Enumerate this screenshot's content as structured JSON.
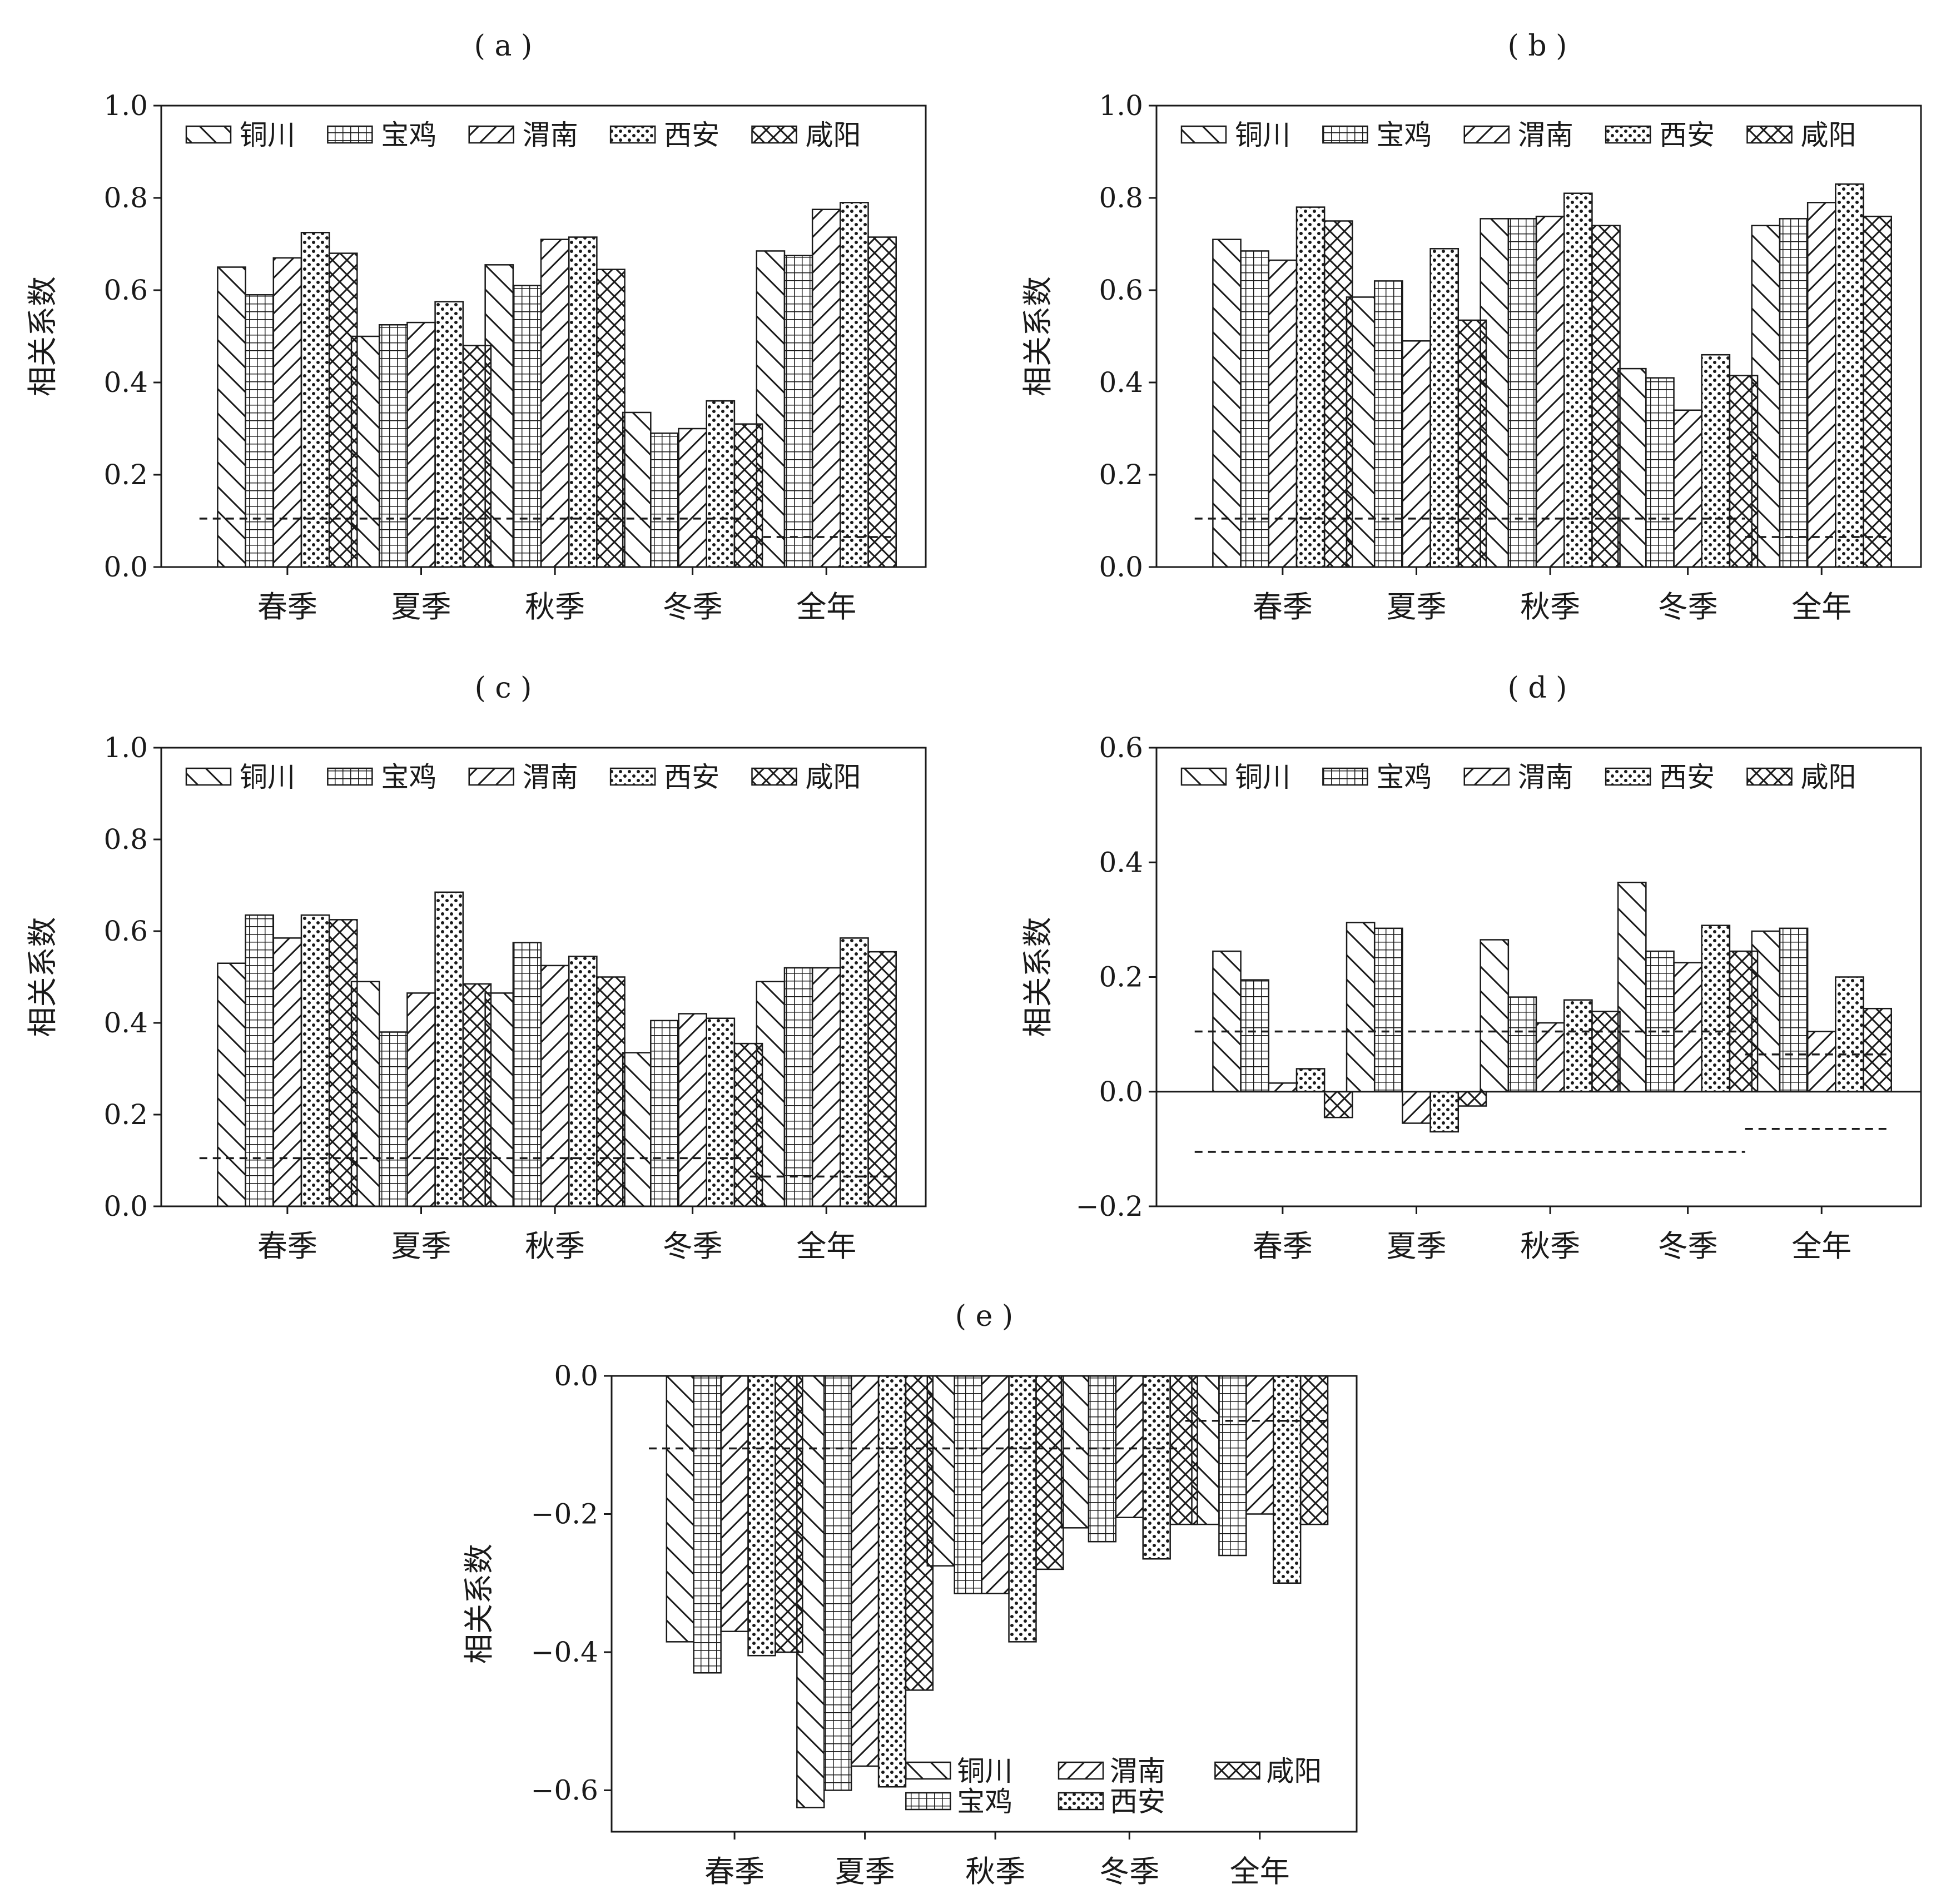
{
  "figure": {
    "y_axis_title": "相关系数",
    "patterns": {
      "铜川": "back-slash",
      "宝鸡": "grid",
      "渭南": "forward-slash",
      "西安": "dots",
      "咸阳": "cross-hatch"
    }
  },
  "chart_data": [
    {
      "type": "bar",
      "panel": "(a)",
      "categories": [
        "春季",
        "夏季",
        "秋季",
        "冬季",
        "全年"
      ],
      "series": [
        {
          "name": "铜川",
          "values": [
            0.65,
            0.5,
            0.655,
            0.335,
            0.685
          ]
        },
        {
          "name": "宝鸡",
          "values": [
            0.59,
            0.525,
            0.61,
            0.29,
            0.675
          ]
        },
        {
          "name": "渭南",
          "values": [
            0.67,
            0.53,
            0.71,
            0.3,
            0.775
          ]
        },
        {
          "name": "西安",
          "values": [
            0.725,
            0.575,
            0.715,
            0.36,
            0.79
          ]
        },
        {
          "name": "咸阳",
          "values": [
            0.68,
            0.48,
            0.645,
            0.31,
            0.715
          ]
        }
      ],
      "ylabel": "相关系数",
      "ylim": [
        0.0,
        1.0
      ],
      "yticks": [
        "0.0",
        "0.2",
        "0.4",
        "0.6",
        "0.8",
        "1.0"
      ],
      "significance": [
        {
          "value": 0.105,
          "span": "春季–冬季"
        },
        {
          "value": 0.065,
          "span": "全年"
        }
      ],
      "legend_position": "top"
    },
    {
      "type": "bar",
      "panel": "(b)",
      "categories": [
        "春季",
        "夏季",
        "秋季",
        "冬季",
        "全年"
      ],
      "series": [
        {
          "name": "铜川",
          "values": [
            0.71,
            0.585,
            0.755,
            0.43,
            0.74
          ]
        },
        {
          "name": "宝鸡",
          "values": [
            0.685,
            0.62,
            0.755,
            0.41,
            0.755
          ]
        },
        {
          "name": "渭南",
          "values": [
            0.665,
            0.49,
            0.76,
            0.34,
            0.79
          ]
        },
        {
          "name": "西安",
          "values": [
            0.78,
            0.69,
            0.81,
            0.46,
            0.83
          ]
        },
        {
          "name": "咸阳",
          "values": [
            0.75,
            0.535,
            0.74,
            0.415,
            0.76
          ]
        }
      ],
      "ylabel": "相关系数",
      "ylim": [
        0.0,
        1.0
      ],
      "yticks": [
        "0.0",
        "0.2",
        "0.4",
        "0.6",
        "0.8",
        "1.0"
      ],
      "significance": [
        {
          "value": 0.105,
          "span": "春季–冬季"
        },
        {
          "value": 0.065,
          "span": "全年"
        }
      ],
      "legend_position": "top"
    },
    {
      "type": "bar",
      "panel": "(c)",
      "categories": [
        "春季",
        "夏季",
        "秋季",
        "冬季",
        "全年"
      ],
      "series": [
        {
          "name": "铜川",
          "values": [
            0.53,
            0.49,
            0.465,
            0.335,
            0.49
          ]
        },
        {
          "name": "宝鸡",
          "values": [
            0.635,
            0.38,
            0.575,
            0.405,
            0.52
          ]
        },
        {
          "name": "渭南",
          "values": [
            0.585,
            0.465,
            0.525,
            0.42,
            0.52
          ]
        },
        {
          "name": "西安",
          "values": [
            0.635,
            0.685,
            0.545,
            0.41,
            0.585
          ]
        },
        {
          "name": "咸阳",
          "values": [
            0.625,
            0.485,
            0.5,
            0.355,
            0.555
          ]
        }
      ],
      "ylabel": "相关系数",
      "ylim": [
        0.0,
        1.0
      ],
      "yticks": [
        "0.0",
        "0.2",
        "0.4",
        "0.6",
        "0.8",
        "1.0"
      ],
      "significance": [
        {
          "value": 0.105,
          "span": "春季–冬季"
        },
        {
          "value": 0.065,
          "span": "全年"
        }
      ],
      "legend_position": "top"
    },
    {
      "type": "bar",
      "panel": "(d)",
      "categories": [
        "春季",
        "夏季",
        "秋季",
        "冬季",
        "全年"
      ],
      "series": [
        {
          "name": "铜川",
          "values": [
            0.245,
            0.295,
            0.265,
            0.365,
            0.28
          ]
        },
        {
          "name": "宝鸡",
          "values": [
            0.195,
            0.285,
            0.165,
            0.245,
            0.285
          ]
        },
        {
          "name": "渭南",
          "values": [
            0.015,
            -0.055,
            0.12,
            0.225,
            0.105
          ]
        },
        {
          "name": "西安",
          "values": [
            0.04,
            -0.07,
            0.16,
            0.29,
            0.2
          ]
        },
        {
          "name": "咸阳",
          "values": [
            -0.045,
            -0.025,
            0.14,
            0.245,
            0.145
          ]
        }
      ],
      "ylabel": "相关系数",
      "ylim": [
        -0.2,
        0.6
      ],
      "yticks": [
        "−0.2",
        "0.0",
        "0.2",
        "0.4",
        "0.6"
      ],
      "significance": [
        {
          "value": 0.105,
          "span": "春季–冬季"
        },
        {
          "value": -0.105,
          "span": "春季–冬季"
        },
        {
          "value": 0.065,
          "span": "全年"
        },
        {
          "value": -0.065,
          "span": "全年"
        }
      ],
      "legend_position": "top"
    },
    {
      "type": "bar",
      "panel": "(e)",
      "categories": [
        "春季",
        "夏季",
        "秋季",
        "冬季",
        "全年"
      ],
      "series": [
        {
          "name": "铜川",
          "values": [
            -0.385,
            -0.625,
            -0.275,
            -0.22,
            -0.215
          ]
        },
        {
          "name": "宝鸡",
          "values": [
            -0.43,
            -0.6,
            -0.315,
            -0.24,
            -0.26
          ]
        },
        {
          "name": "渭南",
          "values": [
            -0.37,
            -0.565,
            -0.315,
            -0.205,
            -0.2
          ]
        },
        {
          "name": "西安",
          "values": [
            -0.405,
            -0.595,
            -0.385,
            -0.265,
            -0.3
          ]
        },
        {
          "name": "咸阳",
          "values": [
            -0.4,
            -0.455,
            -0.28,
            -0.215,
            -0.215
          ]
        }
      ],
      "ylabel": "相关系数",
      "ylim": [
        -0.66,
        0.0
      ],
      "yticks": [
        "−0.6",
        "−0.4",
        "−0.2",
        "0.0"
      ],
      "significance": [
        {
          "value": -0.105,
          "span": "春季–冬季"
        },
        {
          "value": -0.065,
          "span": "全年"
        }
      ],
      "legend_position": "bottom-right"
    }
  ]
}
